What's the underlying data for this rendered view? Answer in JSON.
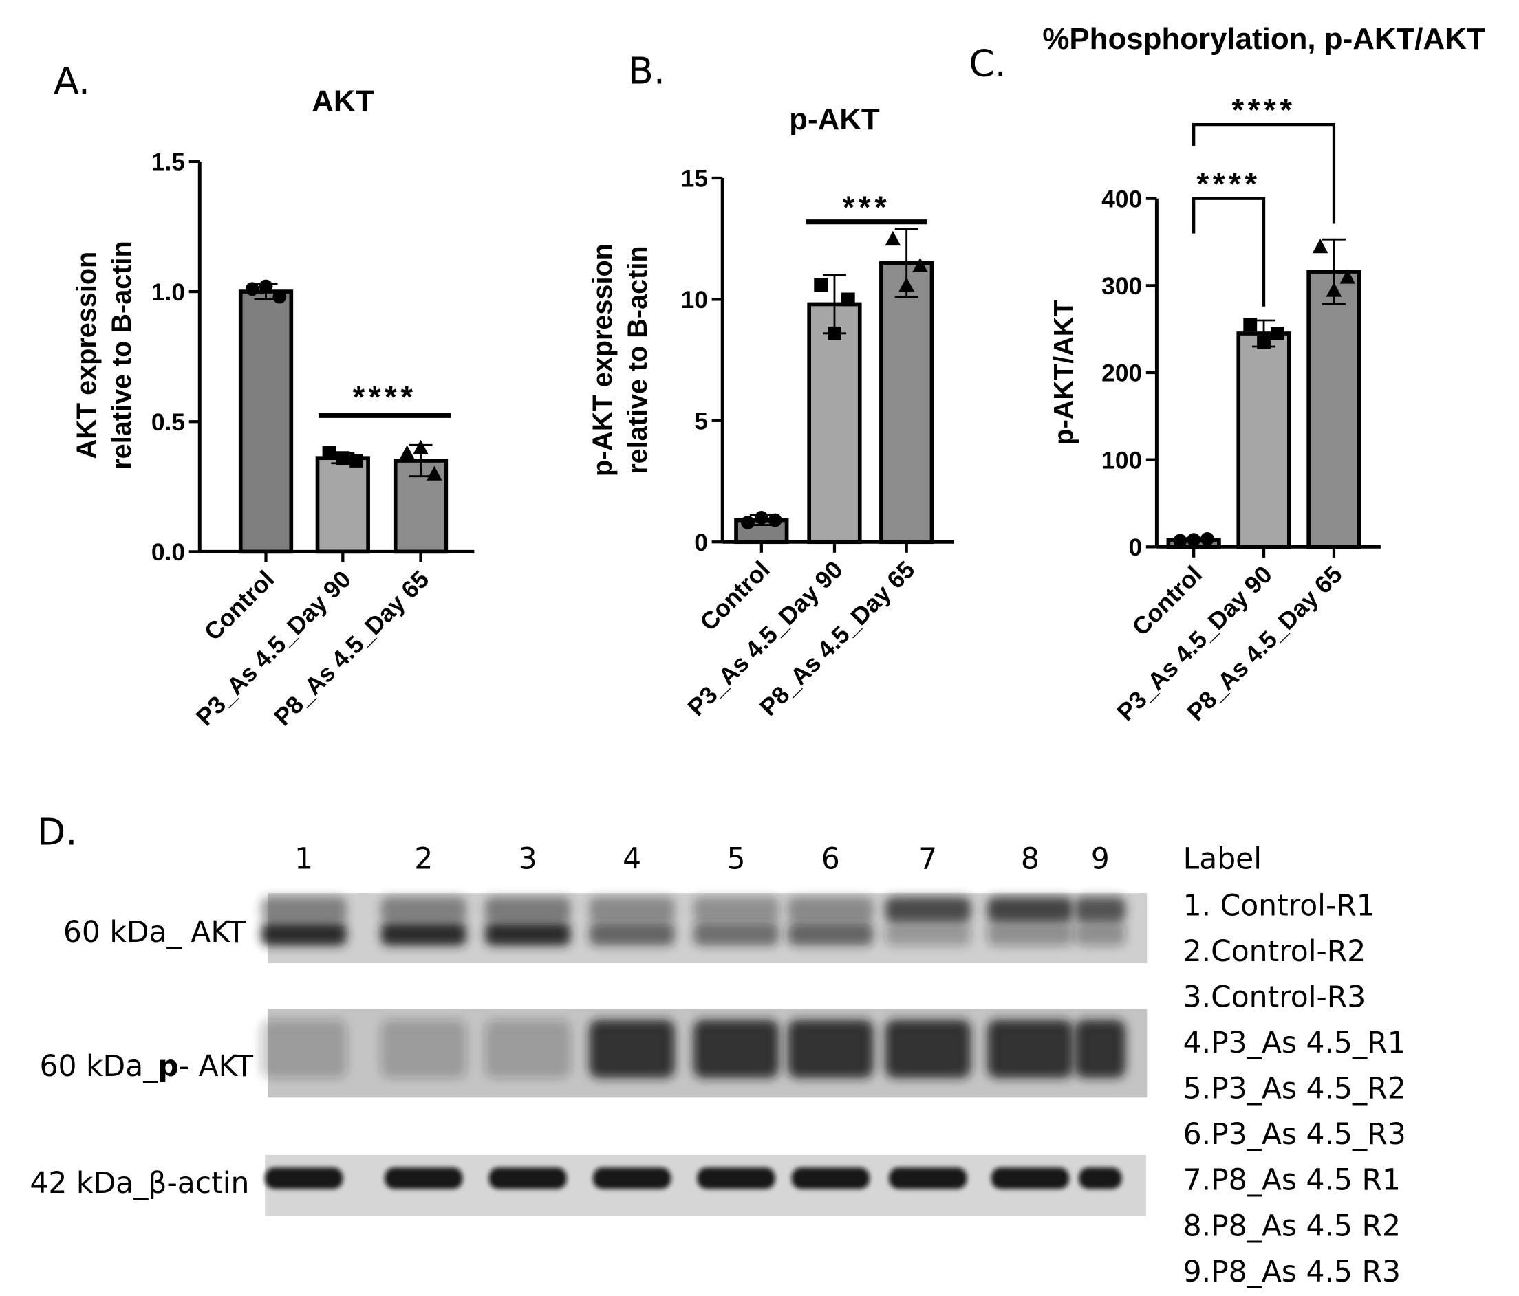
{
  "chart_data": [
    {
      "type": "bar",
      "panel_label": "A.",
      "title": "AKT",
      "ylabel": [
        "AKT expression",
        "relative to B-actin"
      ],
      "categories": [
        "Control",
        "P3_As 4.5_Day 90",
        "P8_As 4.5_Day 65"
      ],
      "values": [
        1.0,
        0.36,
        0.35
      ],
      "errors": [
        0.03,
        0.02,
        0.06
      ],
      "points": [
        [
          1.01,
          1.02,
          0.98
        ],
        [
          0.38,
          0.36,
          0.35
        ],
        [
          0.38,
          0.4,
          0.3
        ]
      ],
      "colors": [
        "#7f7f7f",
        "#a6a6a6",
        "#8c8c8c"
      ],
      "ylim": [
        0,
        1.5
      ],
      "yticks": [
        {
          "value": 0,
          "label": "0.0"
        },
        0.5,
        {
          "value": 1,
          "label": "1.0"
        },
        1.5
      ],
      "annotations": [
        "****"
      ]
    },
    {
      "type": "bar",
      "panel_label": "B.",
      "title": "p-AKT",
      "ylabel": [
        "p-AKT expression",
        "relative to B-actin"
      ],
      "categories": [
        "Control",
        "P3_As 4.5_Day 90",
        "P8_As 4.5_Day 65"
      ],
      "values": [
        0.9,
        9.8,
        11.5
      ],
      "errors": [
        0.2,
        1.2,
        1.4
      ],
      "points": [
        [
          0.8,
          1.0,
          0.9
        ],
        [
          10.6,
          8.6,
          10.0
        ],
        [
          12.5,
          10.6,
          11.4
        ]
      ],
      "colors": [
        "#7f7f7f",
        "#a6a6a6",
        "#8c8c8c"
      ],
      "ylim": [
        0,
        15
      ],
      "yticks": [
        0,
        5,
        10,
        15
      ],
      "annotations": [
        "***"
      ]
    },
    {
      "type": "bar",
      "panel_label": "C.",
      "title": "%Phosphorylation, p-AKT/AKT",
      "ylabel": [
        "p-AKT/AKT"
      ],
      "categories": [
        "Control",
        "P3_As 4.5_Day 90",
        "P8_As 4.5_Day 65"
      ],
      "values": [
        8,
        245,
        316
      ],
      "errors": [
        2,
        15,
        37
      ],
      "points": [
        [
          7,
          8,
          9
        ],
        [
          255,
          235,
          245
        ],
        [
          345,
          295,
          310
        ]
      ],
      "colors": [
        "#7f7f7f",
        "#a6a6a6",
        "#8c8c8c"
      ],
      "ylim": [
        0,
        400
      ],
      "yticks": [
        0,
        100,
        200,
        300,
        400
      ],
      "annotations": [
        "****",
        "****"
      ]
    }
  ],
  "blot": {
    "panel_label": "D.",
    "lanes": [
      "1",
      "2",
      "3",
      "4",
      "5",
      "6",
      "7",
      "8",
      "9"
    ],
    "row_labels": [
      "60 kDa_ AKT",
      [
        "60 kDa_",
        "p",
        "- AKT"
      ],
      "42 kDa_β-actin"
    ],
    "legend_title": "Label",
    "legend": [
      "1. Control-R1",
      "2.Control-R2",
      "3.Control-R3",
      "4.P3_As 4.5_R1",
      "5.P3_As 4.5_R2",
      "6.P3_As 4.5_R3",
      "7.P8_As 4.5 R1",
      "8.P8_As 4.5 R2",
      "9.P8_As 4.5 R3"
    ]
  }
}
